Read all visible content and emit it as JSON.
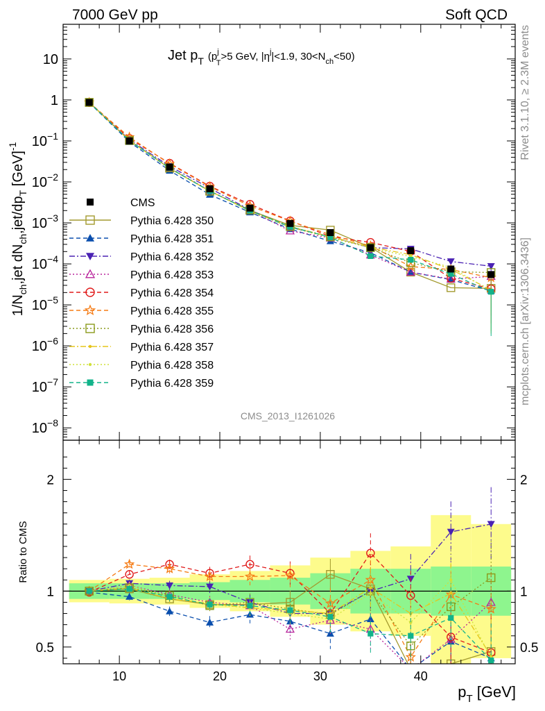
{
  "header": {
    "left": "7000 GeV pp",
    "right": "Soft QCD"
  },
  "side": {
    "rivet": "Rivet 3.1.10, ≥ 2.3M events",
    "mcplots": "mcplots.cern.ch [arXiv:1306.3436]"
  },
  "watermark": "CMS_2013_I1261026",
  "axis_text": {
    "ylabel_main": "1/N_ch,jet dN_ch,jet/dp_T [GeV]^-1",
    "ylabel_ratio": "Ratio to CMS",
    "xlabel": "p_T [GeV]"
  },
  "chart_data": {
    "type": "line",
    "title": "Jet p_T (p_T^j>5 GeV, |η^j|<1.9, 30<N_ch<50)",
    "title_parts": {
      "main": "Jet p",
      "main_sub": "T",
      "paren_open": "(p",
      "pt_sup": "j",
      "pt_sub": "T",
      "mid": ">5 GeV, |η",
      "eta_sup": "j",
      "tail": "|<1.9, 30<N",
      "nch_sub": "ch",
      "close": "<50)"
    },
    "x": [
      7,
      11,
      15,
      19,
      23,
      27,
      31,
      35,
      39,
      43,
      47
    ],
    "xlim": [
      4.4,
      49.4
    ],
    "xticks": [
      10,
      20,
      30,
      40
    ],
    "main_ylim": [
      5e-09,
      70
    ],
    "main_log": true,
    "main_yticks": [
      {
        "v": 10,
        "b": "10",
        "e": ""
      },
      {
        "v": 1,
        "b": "1",
        "e": ""
      },
      {
        "v": 0.1,
        "b": "10",
        "e": "−1"
      },
      {
        "v": 0.01,
        "b": "10",
        "e": "−2"
      },
      {
        "v": 0.001,
        "b": "10",
        "e": "−3"
      },
      {
        "v": 0.0001,
        "b": "10",
        "e": "−4"
      },
      {
        "v": 1e-05,
        "b": "10",
        "e": "−5"
      },
      {
        "v": 1e-06,
        "b": "10",
        "e": "−6"
      },
      {
        "v": 1e-07,
        "b": "10",
        "e": "−7"
      },
      {
        "v": 1e-08,
        "b": "10",
        "e": "−8"
      }
    ],
    "ratio_ylim": [
      0.35,
      2.35
    ],
    "ratio_yticks": [
      0.5,
      1,
      2
    ],
    "ratio_yticklabels": [
      "0.5",
      "1",
      "2"
    ],
    "ratio_band_inner": [
      0.07,
      0.07,
      0.07,
      0.08,
      0.1,
      0.12,
      0.16,
      0.2,
      0.2,
      0.22,
      0.22
    ],
    "ratio_band_outer": [
      0.1,
      0.11,
      0.12,
      0.15,
      0.18,
      0.23,
      0.3,
      0.36,
      0.4,
      0.68,
      0.6
    ],
    "legend_position": "left-center",
    "data": {
      "name": "CMS",
      "values": [
        0.87,
        0.1,
        0.023,
        0.0068,
        0.0023,
        0.00097,
        0.00058,
        0.00025,
        0.00021,
        7.5e-05,
        5.5e-05
      ]
    },
    "series": [
      {
        "name": "Pythia 6.428 350",
        "color": "#a39a2e",
        "dash": "",
        "marker": "sq_open",
        "ratio": [
          1.0,
          1.02,
          0.93,
          0.88,
          0.88,
          0.9,
          1.15,
          1.02,
          0.3,
          0.35,
          0.46
        ]
      },
      {
        "name": "Pythia 6.428 351",
        "color": "#0a4ead",
        "dash": "6,4",
        "marker": "tri_up",
        "ratio": [
          0.99,
          0.95,
          0.82,
          0.72,
          0.79,
          0.73,
          0.62,
          0.75,
          0.3,
          0.55,
          0.4
        ]
      },
      {
        "name": "Pythia 6.428 352",
        "color": "#4a22b3",
        "dash": "8,3,2,3",
        "marker": "tri_down",
        "ratio": [
          1.0,
          1.07,
          1.05,
          1.04,
          0.9,
          0.8,
          0.8,
          1.0,
          1.11,
          1.53,
          1.6
        ]
      },
      {
        "name": "Pythia 6.428 353",
        "color": "#b8239b",
        "dash": "2,3",
        "marker": "tri_open",
        "ratio": [
          1.0,
          1.05,
          0.97,
          0.9,
          0.87,
          0.66,
          0.74,
          0.66,
          0.3,
          0.57,
          0.9
        ]
      },
      {
        "name": "Pythia 6.428 354",
        "color": "#e01818",
        "dash": "6,4",
        "marker": "circle_open",
        "ratio": [
          0.99,
          1.15,
          1.24,
          1.16,
          1.24,
          1.16,
          0.8,
          1.34,
          0.96,
          0.59,
          0.45
        ]
      },
      {
        "name": "Pythia 6.428 355",
        "color": "#f57b14",
        "dash": "6,4",
        "marker": "star_open",
        "ratio": [
          1.0,
          1.24,
          1.2,
          1.13,
          1.13,
          1.14,
          0.89,
          1.1,
          0.41,
          0.97,
          0.84
        ]
      },
      {
        "name": "Pythia 6.428 356",
        "color": "#8a9a1a",
        "dash": "2,3",
        "marker": "sq_open",
        "ratio": [
          1.0,
          1.03,
          0.96,
          0.87,
          0.9,
          0.84,
          0.79,
          1.0,
          0.51,
          0.86,
          1.12
        ]
      },
      {
        "name": "Pythia 6.428 357",
        "color": "#e6c51a",
        "dash": "8,3,2,3",
        "marker": "dot",
        "ratio": [
          1.0,
          1.03,
          0.93,
          0.89,
          0.85,
          0.83,
          0.8,
          1.03,
          0.8,
          0.98,
          0.42
        ]
      },
      {
        "name": "Pythia 6.428 358",
        "color": "#cfe03a",
        "dash": "2,3",
        "marker": "dot",
        "ratio": [
          1.0,
          1.05,
          0.95,
          0.88,
          0.85,
          0.8,
          0.75,
          0.98,
          0.72,
          1.1,
          0.4
        ]
      },
      {
        "name": "Pythia 6.428 359",
        "color": "#12b38a",
        "dash": "6,4",
        "marker": "sq_filled",
        "ratio": [
          1.0,
          1.02,
          0.95,
          0.88,
          0.87,
          0.83,
          0.77,
          0.62,
          0.6,
          0.76,
          0.38
        ]
      }
    ]
  }
}
